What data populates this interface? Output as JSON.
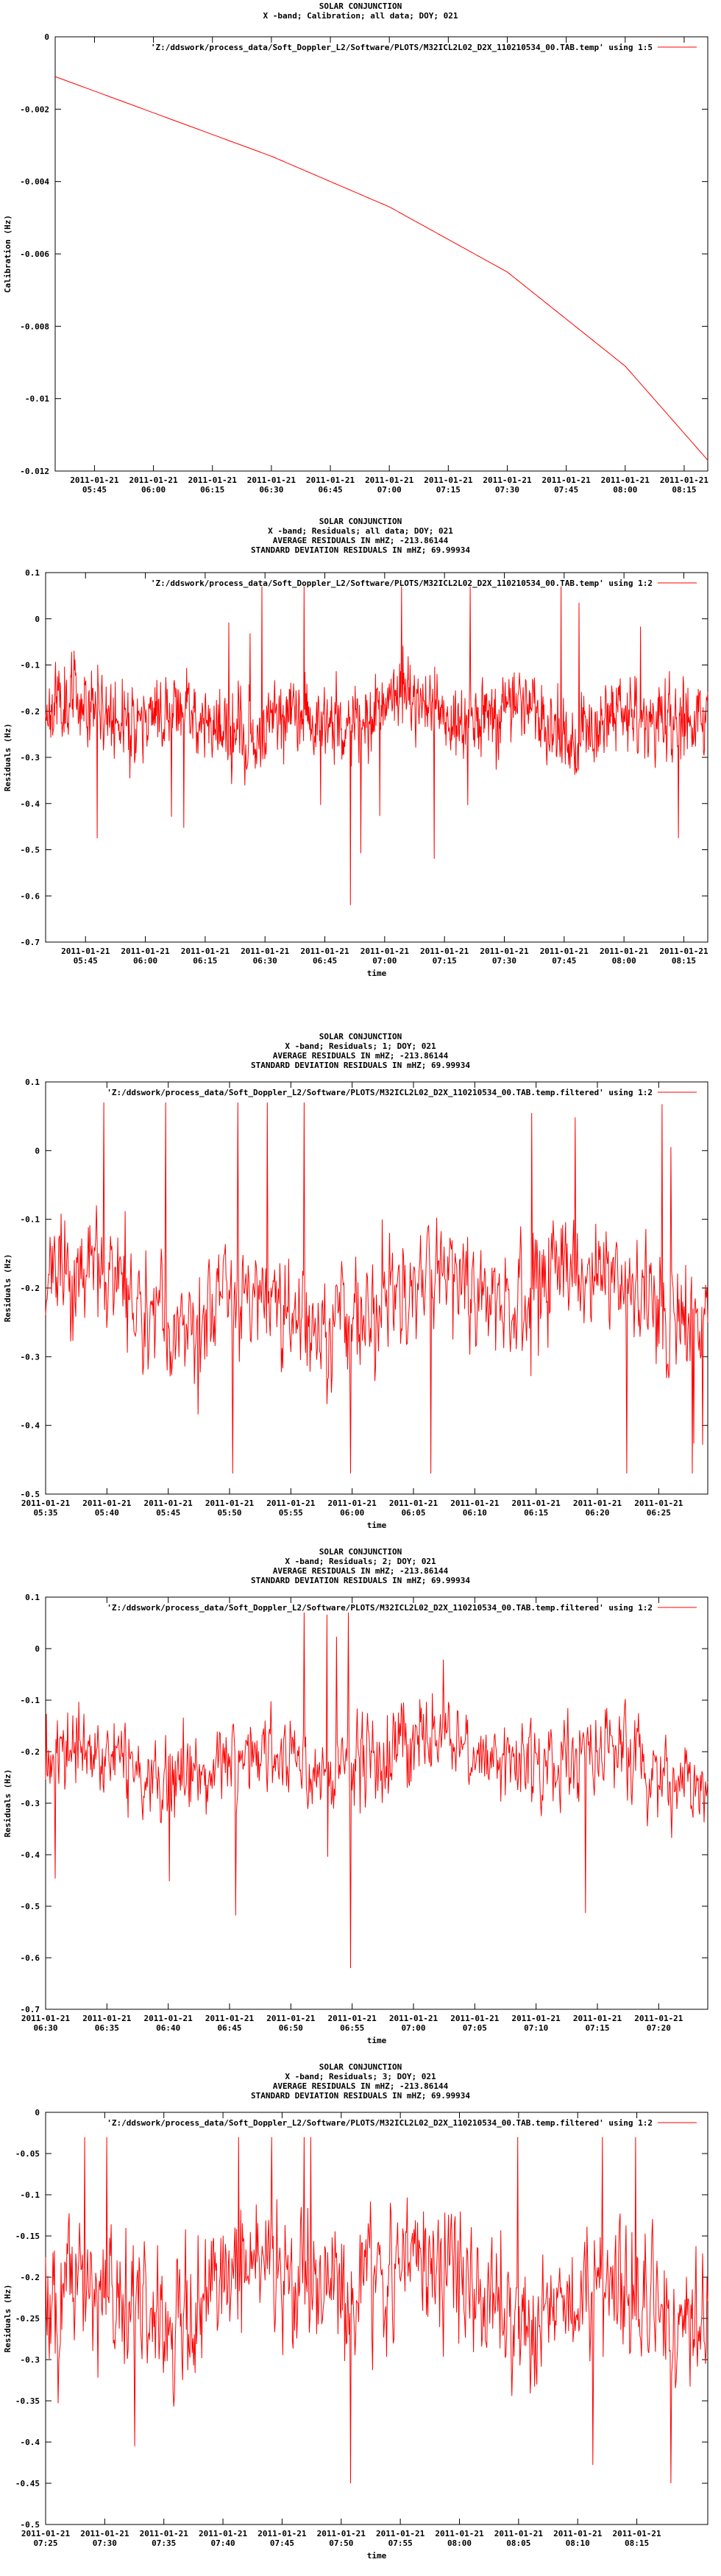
{
  "colors": {
    "series": "#ff0000",
    "axis": "#000000",
    "background": "#ffffff"
  },
  "chart_data": [
    {
      "type": "line",
      "title": [
        "SOLAR CONJUNCTION",
        "X -band; Calibration; all data; DOY; 021"
      ],
      "legend": "'Z:/ddswork/process_data/Soft_Doppler_L2/Software/PLOTS/M32ICL2L02_D2X_110210534_00.TAB.temp' using 1:5",
      "legend_position": "top-right",
      "xlabel": "",
      "ylabel": "Calibration (Hz)",
      "xlim": [
        "2011-01-21 05:35",
        "2011-01-21 08:21"
      ],
      "ylim": [
        -0.012,
        0
      ],
      "yticks": [
        0,
        -0.002,
        -0.004,
        -0.006,
        -0.008,
        -0.01,
        -0.012
      ],
      "ytick_labels": [
        "0",
        "-0.002",
        "-0.004",
        "-0.006",
        "-0.008",
        "-0.01",
        "-0.012"
      ],
      "xticks": [
        "2011-01-21 05:45",
        "2011-01-21 06:00",
        "2011-01-21 06:15",
        "2011-01-21 06:30",
        "2011-01-21 06:45",
        "2011-01-21 07:00",
        "2011-01-21 07:15",
        "2011-01-21 07:30",
        "2011-01-21 07:45",
        "2011-01-21 08:00",
        "2011-01-21 08:15"
      ],
      "xtick_labels": [
        [
          "2011-01-21",
          "05:45"
        ],
        [
          "2011-01-21",
          "06:00"
        ],
        [
          "2011-01-21",
          "06:15"
        ],
        [
          "2011-01-21",
          "06:30"
        ],
        [
          "2011-01-21",
          "06:45"
        ],
        [
          "2011-01-21",
          "07:00"
        ],
        [
          "2011-01-21",
          "07:15"
        ],
        [
          "2011-01-21",
          "07:30"
        ],
        [
          "2011-01-21",
          "07:45"
        ],
        [
          "2011-01-21",
          "08:00"
        ],
        [
          "2011-01-21",
          "08:15"
        ]
      ],
      "grid": false,
      "curve": "smooth",
      "curve_points": [
        {
          "x": "2011-01-21 05:35",
          "y": -0.0011
        },
        {
          "x": "2011-01-21 06:00",
          "y": -0.0021
        },
        {
          "x": "2011-01-21 06:30",
          "y": -0.0033
        },
        {
          "x": "2011-01-21 07:00",
          "y": -0.0047
        },
        {
          "x": "2011-01-21 07:30",
          "y": -0.0065
        },
        {
          "x": "2011-01-21 08:00",
          "y": -0.0091
        },
        {
          "x": "2011-01-21 08:21",
          "y": -0.0117
        }
      ]
    },
    {
      "type": "line",
      "title": [
        "SOLAR CONJUNCTION",
        "X -band; Residuals; all data; DOY; 021",
        "AVERAGE RESIDUALS IN mHZ; -213.86144",
        "STANDARD DEVIATION RESIDUALS IN mHZ; 69.99934"
      ],
      "legend": "'Z:/ddswork/process_data/Soft_Doppler_L2/Software/PLOTS/M32ICL2L02_D2X_110210534_00.TAB.temp' using 1:2",
      "legend_position": "top-right",
      "xlabel": "time",
      "ylabel": "Residuals (Hz)",
      "xlim": [
        "2011-01-21 05:35",
        "2011-01-21 08:21"
      ],
      "ylim": [
        -0.7,
        0.1
      ],
      "yticks": [
        0.1,
        0,
        -0.1,
        -0.2,
        -0.3,
        -0.4,
        -0.5,
        -0.6,
        -0.7
      ],
      "ytick_labels": [
        "0.1",
        "0",
        "-0.1",
        "-0.2",
        "-0.3",
        "-0.4",
        "-0.5",
        "-0.6",
        "-0.7"
      ],
      "xticks": [
        "2011-01-21 05:45",
        "2011-01-21 06:00",
        "2011-01-21 06:15",
        "2011-01-21 06:30",
        "2011-01-21 06:45",
        "2011-01-21 07:00",
        "2011-01-21 07:15",
        "2011-01-21 07:30",
        "2011-01-21 07:45",
        "2011-01-21 08:00",
        "2011-01-21 08:15"
      ],
      "xtick_labels": [
        [
          "2011-01-21",
          "05:45"
        ],
        [
          "2011-01-21",
          "06:00"
        ],
        [
          "2011-01-21",
          "06:15"
        ],
        [
          "2011-01-21",
          "06:30"
        ],
        [
          "2011-01-21",
          "06:45"
        ],
        [
          "2011-01-21",
          "07:00"
        ],
        [
          "2011-01-21",
          "07:15"
        ],
        [
          "2011-01-21",
          "07:30"
        ],
        [
          "2011-01-21",
          "07:45"
        ],
        [
          "2011-01-21",
          "08:00"
        ],
        [
          "2011-01-21",
          "08:15"
        ]
      ],
      "grid": false,
      "noise": {
        "mean": -0.214,
        "sd": 0.07,
        "min": -0.62,
        "max": 0.07,
        "samples": 1400,
        "seed": 11
      }
    },
    {
      "type": "line",
      "title": [
        "SOLAR CONJUNCTION",
        "X -band; Residuals; 1; DOY; 021",
        "AVERAGE RESIDUALS IN mHZ; -213.86144",
        "STANDARD DEVIATION RESIDUALS IN mHZ; 69.99934"
      ],
      "legend": "'Z:/ddswork/process_data/Soft_Doppler_L2/Software/PLOTS/M32ICL2L02_D2X_110210534_00.TAB.temp.filtered' using 1:2",
      "legend_position": "top-right",
      "xlabel": "time",
      "ylabel": "Residuals (Hz)",
      "xlim": [
        "2011-01-21 05:35",
        "2011-01-21 06:29"
      ],
      "ylim": [
        -0.5,
        0.1
      ],
      "yticks": [
        0.1,
        0,
        -0.1,
        -0.2,
        -0.3,
        -0.4,
        -0.5
      ],
      "ytick_labels": [
        "0.1",
        "0",
        "-0.1",
        "-0.2",
        "-0.3",
        "-0.4",
        "-0.5"
      ],
      "xticks": [
        "2011-01-21 05:35",
        "2011-01-21 05:40",
        "2011-01-21 05:45",
        "2011-01-21 05:50",
        "2011-01-21 05:55",
        "2011-01-21 06:00",
        "2011-01-21 06:05",
        "2011-01-21 06:10",
        "2011-01-21 06:15",
        "2011-01-21 06:20",
        "2011-01-21 06:25"
      ],
      "xtick_labels": [
        [
          "2011-01-21",
          "05:35"
        ],
        [
          "2011-01-21",
          "05:40"
        ],
        [
          "2011-01-21",
          "05:45"
        ],
        [
          "2011-01-21",
          "05:50"
        ],
        [
          "2011-01-21",
          "05:55"
        ],
        [
          "2011-01-21",
          "06:00"
        ],
        [
          "2011-01-21",
          "06:05"
        ],
        [
          "2011-01-21",
          "06:10"
        ],
        [
          "2011-01-21",
          "06:15"
        ],
        [
          "2011-01-21",
          "06:20"
        ],
        [
          "2011-01-21",
          "06:25"
        ]
      ],
      "grid": false,
      "noise": {
        "mean": -0.214,
        "sd": 0.07,
        "min": -0.47,
        "max": 0.07,
        "samples": 900,
        "seed": 23
      }
    },
    {
      "type": "line",
      "title": [
        "SOLAR CONJUNCTION",
        "X -band; Residuals; 2; DOY; 021",
        "AVERAGE RESIDUALS IN mHZ; -213.86144",
        "STANDARD DEVIATION RESIDUALS IN mHZ; 69.99934"
      ],
      "legend": "'Z:/ddswork/process_data/Soft_Doppler_L2/Software/PLOTS/M32ICL2L02_D2X_110210534_00.TAB.temp.filtered' using 1:2",
      "legend_position": "top-right",
      "xlabel": "time",
      "ylabel": "Residuals (Hz)",
      "xlim": [
        "2011-01-21 06:30",
        "2011-01-21 07:24"
      ],
      "ylim": [
        -0.7,
        0.1
      ],
      "yticks": [
        0.1,
        0,
        -0.1,
        -0.2,
        -0.3,
        -0.4,
        -0.5,
        -0.6,
        -0.7
      ],
      "ytick_labels": [
        "0.1",
        "0",
        "-0.1",
        "-0.2",
        "-0.3",
        "-0.4",
        "-0.5",
        "-0.6",
        "-0.7"
      ],
      "xticks": [
        "2011-01-21 06:30",
        "2011-01-21 06:35",
        "2011-01-21 06:40",
        "2011-01-21 06:45",
        "2011-01-21 06:50",
        "2011-01-21 06:55",
        "2011-01-21 07:00",
        "2011-01-21 07:05",
        "2011-01-21 07:10",
        "2011-01-21 07:15",
        "2011-01-21 07:20"
      ],
      "xtick_labels": [
        [
          "2011-01-21",
          "06:30"
        ],
        [
          "2011-01-21",
          "06:35"
        ],
        [
          "2011-01-21",
          "06:40"
        ],
        [
          "2011-01-21",
          "06:45"
        ],
        [
          "2011-01-21",
          "06:50"
        ],
        [
          "2011-01-21",
          "06:55"
        ],
        [
          "2011-01-21",
          "07:00"
        ],
        [
          "2011-01-21",
          "07:05"
        ],
        [
          "2011-01-21",
          "07:10"
        ],
        [
          "2011-01-21",
          "07:15"
        ],
        [
          "2011-01-21",
          "07:20"
        ]
      ],
      "grid": false,
      "noise": {
        "mean": -0.214,
        "sd": 0.07,
        "min": -0.62,
        "max": 0.07,
        "samples": 900,
        "seed": 37
      }
    },
    {
      "type": "line",
      "title": [
        "SOLAR CONJUNCTION",
        "X -band; Residuals; 3; DOY; 021",
        "AVERAGE RESIDUALS IN mHZ; -213.86144",
        "STANDARD DEVIATION RESIDUALS IN mHZ; 69.99934"
      ],
      "legend": "'Z:/ddswork/process_data/Soft_Doppler_L2/Software/PLOTS/M32ICL2L02_D2X_110210534_00.TAB.temp.filtered' using 1:2",
      "legend_position": "top-right",
      "xlabel": "time",
      "ylabel": "Residuals (Hz)",
      "xlim": [
        "2011-01-21 07:25",
        "2011-01-21 08:21"
      ],
      "ylim": [
        -0.5,
        0
      ],
      "yticks": [
        0,
        -0.05,
        -0.1,
        -0.15,
        -0.2,
        -0.25,
        -0.3,
        -0.35,
        -0.4,
        -0.45,
        -0.5
      ],
      "ytick_labels": [
        "0",
        "-0.05",
        "-0.1",
        "-0.15",
        "-0.2",
        "-0.25",
        "-0.3",
        "-0.35",
        "-0.4",
        "-0.45",
        "-0.5"
      ],
      "xticks": [
        "2011-01-21 07:25",
        "2011-01-21 07:30",
        "2011-01-21 07:35",
        "2011-01-21 07:40",
        "2011-01-21 07:45",
        "2011-01-21 07:50",
        "2011-01-21 07:55",
        "2011-01-21 08:00",
        "2011-01-21 08:05",
        "2011-01-21 08:10",
        "2011-01-21 08:15"
      ],
      "xtick_labels": [
        [
          "2011-01-21",
          "07:25"
        ],
        [
          "2011-01-21",
          "07:30"
        ],
        [
          "2011-01-21",
          "07:35"
        ],
        [
          "2011-01-21",
          "07:40"
        ],
        [
          "2011-01-21",
          "07:45"
        ],
        [
          "2011-01-21",
          "07:50"
        ],
        [
          "2011-01-21",
          "07:55"
        ],
        [
          "2011-01-21",
          "08:00"
        ],
        [
          "2011-01-21",
          "08:05"
        ],
        [
          "2011-01-21",
          "08:10"
        ],
        [
          "2011-01-21",
          "08:15"
        ]
      ],
      "grid": false,
      "noise": {
        "mean": -0.214,
        "sd": 0.07,
        "min": -0.45,
        "max": -0.03,
        "samples": 900,
        "seed": 51
      }
    }
  ]
}
